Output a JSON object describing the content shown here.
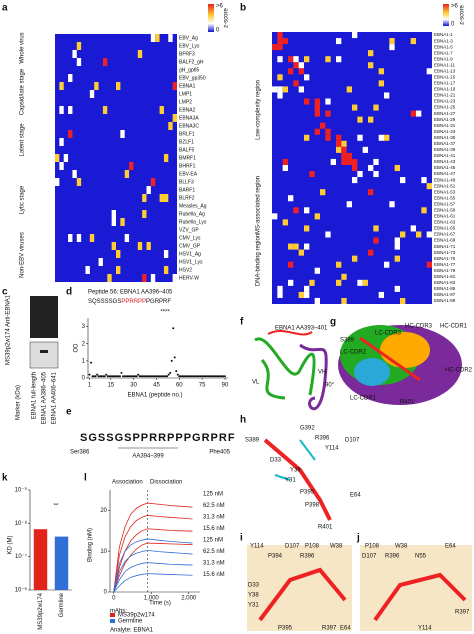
{
  "panels": {
    "a": "a",
    "b": "b",
    "c": "c",
    "d": "d",
    "e": "e",
    "f": "f",
    "g": "g",
    "h": "h",
    "i": "i",
    "j": "j",
    "k": "k",
    "l": "l"
  },
  "colorbar": {
    "max": ">6",
    "min": "0",
    "label": "z-score"
  },
  "heatmap_a": {
    "rows": [
      "EBV_Ag",
      "EBV_Lys",
      "BFRF3",
      "BALF2_gH",
      "gH_gp85",
      "EBV_gp350",
      "EBNA1",
      "LMP1",
      "LMP2",
      "EBNA2",
      "EBNA3A",
      "EBNA3C",
      "BRLF1",
      "BZLF1",
      "BALF5",
      "BMRF1",
      "BHRF1",
      "EBV-EA",
      "BLLF3",
      "BARF1",
      "BLRF2",
      "Measles_Ag",
      "Rubella_Ag",
      "Rubella_Lys",
      "VZV_GP",
      "CMV_Lys",
      "CMV_GP",
      "HSV1_Ag",
      "HSV1_Lys",
      "HSV2",
      "HERV-W"
    ],
    "groups": [
      "Whole virus",
      "Capsid/late stage",
      "Latent stage",
      "Lytic stage",
      "Non-EBV viruses"
    ]
  },
  "heatmap_b": {
    "rows": [
      "EBNA1-1",
      "EBNA1-3",
      "EBNA1-5",
      "EBNA1-7",
      "EBNA1-9",
      "EBNA1-11",
      "EBNA1-13",
      "EBNA1-15",
      "EBNA1-17",
      "EBNA1-19",
      "EBNA1-21",
      "EBNA1-23",
      "EBNA1-25",
      "EBNA1-27",
      "EBNA1-29",
      "EBNA1-31",
      "EBNA1-33",
      "EBNA1-35",
      "EBNA1-37",
      "EBNA1-39",
      "EBNA1-41",
      "EBNA1-43",
      "EBNA1-45",
      "EBNA1-47",
      "EBNA1-49",
      "EBNA1-51",
      "EBNA1-53",
      "EBNA1-55",
      "EBNA1-57",
      "EBNA1-59",
      "EBNA1-61",
      "EBNA1-63",
      "EBNA1-65",
      "EBNA1-67",
      "EBNA1-69",
      "EBNA1-71",
      "EBNA1-73",
      "EBNA1-75",
      "EBNA1-77",
      "EBNA1-79",
      "EBNA1-81",
      "EBNA1-83",
      "EBNA1-85",
      "EBNA1-87",
      "EBNA1-89"
    ],
    "groups": [
      "Low-complexity region",
      "MS-associated region",
      "DNA-binding region"
    ]
  },
  "panel_c": {
    "antibody": "MS39p2w174 Anti-EBNA1",
    "marker": "Marker (kDa)",
    "lanes": [
      "EBNA1 full-length",
      "EBNA1 AA386–405",
      "EBNA1 AA406–641"
    ]
  },
  "panel_d": {
    "title": "Peptide 56: EBNA1 AA396–405",
    "sequence_a": "SQSSSSGS",
    "sequence_b": "PPRRPP",
    "sequence_c": "PGRPRF",
    "annotation": "****",
    "ylabel": "OD",
    "xlabel": "EBNA1 (peptide no.)",
    "xlim": [
      0,
      92
    ],
    "ylim": [
      0,
      3.5
    ],
    "xticks": [
      1,
      15,
      30,
      45,
      60,
      75,
      90
    ],
    "yticks": [
      0,
      1,
      2,
      3
    ],
    "values": [
      0.2,
      0.9,
      0.1,
      0.1,
      0.1,
      0.2,
      0.1,
      0.1,
      0.1,
      0.1,
      0.1,
      0.2,
      0.1,
      0.1,
      0.1,
      0.1,
      0.1,
      0.1,
      0.1,
      0.1,
      0.1,
      0.3,
      0.1,
      0.1,
      0.1,
      0.1,
      0.1,
      0.1,
      0.1,
      0.1,
      0.1,
      0.1,
      0.2,
      0.1,
      0.1,
      0.1,
      0.1,
      0.1,
      0.1,
      0.1,
      0.1,
      0.1,
      0.1,
      0.1,
      0.1,
      0.1,
      0.1,
      0.1,
      0.1,
      0.1,
      0.1,
      0.1,
      0.2,
      0.3,
      1.0,
      2.9,
      1.2,
      0.4,
      0.2,
      0.1,
      0.1,
      0.1,
      0.1,
      0.1,
      0.1,
      0.1,
      0.1,
      0.1,
      0.1,
      0.1,
      0.1,
      0.1,
      0.1,
      0.1,
      0.1,
      0.1,
      0.1,
      0.1,
      0.1,
      0.1,
      0.1,
      0.1,
      0.1,
      0.1,
      0.1,
      0.1,
      0.1,
      0.1,
      0.1,
      0.1
    ]
  },
  "panel_e": {
    "logo": "SGSSGSPPRRPPPGRPRF",
    "start": "Ser386",
    "end": "Phe405",
    "core": "AA394–399"
  },
  "panel_f": {
    "labels": [
      "EBNA1 AA393–401",
      "VL",
      "VH"
    ]
  },
  "panel_g": {
    "labels": [
      "HC-CDR3",
      "LC-CDR3",
      "HC-CDR1",
      "LC-CDR2",
      "HC-CDR2",
      "LC-CDR1",
      "S389",
      "R401",
      "90°"
    ]
  },
  "panel_h": {
    "labels": [
      "S389",
      "G392",
      "R396",
      "Y114",
      "D107",
      "D33",
      "Y38",
      "Y31",
      "P395",
      "E64",
      "P398",
      "R401"
    ]
  },
  "panel_i": {
    "labels": [
      "Y114",
      "D107",
      "P108",
      "W38",
      "P394",
      "R396",
      "D33",
      "Y38",
      "Y31",
      "P395",
      "R397",
      "E64"
    ]
  },
  "panel_j": {
    "labels": [
      "P108",
      "W38",
      "D107",
      "R396",
      "N55",
      "E64",
      "R397",
      "Y114"
    ]
  },
  "chart_k": {
    "type": "bar",
    "ylabel": "KD (M)",
    "categories": [
      "MS39p2w174",
      "Germline"
    ],
    "values": [
      1.5e-08,
      2.5e-08
    ],
    "colors": [
      "#e2231a",
      "#2f6fd6"
    ],
    "log": true,
    "ylim": [
      1e-06,
      1e-09
    ],
    "yticks": [
      {
        "value": 1e-09,
        "label": "10⁻⁹"
      },
      {
        "value": 1e-08,
        "label": "10⁻⁸"
      },
      {
        "value": 1e-07,
        "label": "10⁻⁷"
      },
      {
        "value": 1e-06,
        "label": "10⁻⁶"
      }
    ],
    "annotation": "**"
  },
  "chart_l": {
    "type": "line",
    "phase_a": "Association",
    "phase_b": "Dissociation",
    "xlabel": "Time (s)",
    "ylabel": "Binding (nM)",
    "legend_title": "mAbs:",
    "analyte": "Analyte: EBNA1",
    "legend": [
      {
        "name": "MS39p2w174",
        "color": "#e2231a"
      },
      {
        "name": "Germline",
        "color": "#2f6fd6"
      }
    ],
    "x": [
      0,
      150,
      300,
      450,
      600,
      750,
      900,
      1200,
      1500,
      1800,
      2100
    ],
    "xlim": [
      -100,
      2300
    ],
    "ylim": [
      0,
      25
    ],
    "xticks": [
      0,
      {
        "value": 1000,
        "label": "1,000"
      },
      {
        "value": 2000,
        "label": "2,000"
      }
    ],
    "yticks": [
      0,
      10,
      20
    ],
    "series": [
      {
        "name": "125 nM",
        "color": "#e2231a",
        "values": [
          0,
          11,
          16,
          19,
          20.5,
          21.3,
          21.8,
          21.5,
          21.2,
          21,
          20.8
        ]
      },
      {
        "name": "62.5 nM",
        "color": "#e2231a",
        "values": [
          0,
          9,
          13.5,
          16,
          17.5,
          18.3,
          18.8,
          18.5,
          18.3,
          18.1,
          17.9
        ]
      },
      {
        "name": "31.3 nM",
        "color": "#e2231a",
        "values": [
          0,
          6,
          10,
          12.5,
          14,
          15,
          15.5,
          15.3,
          15.1,
          15,
          14.9
        ]
      },
      {
        "name": "15.6 nM",
        "color": "#e2231a",
        "values": [
          0,
          4,
          7,
          9,
          10.5,
          11.5,
          12,
          11.9,
          11.8,
          11.7,
          11.6
        ]
      },
      {
        "name": "125 nM",
        "color": "#2f6fd6",
        "values": [
          0,
          7,
          10,
          11.5,
          12.3,
          12.7,
          13,
          12.7,
          12.4,
          12.2,
          12
        ]
      },
      {
        "name": "62.5 nM",
        "color": "#2f6fd6",
        "values": [
          0,
          5,
          7.5,
          8.8,
          9.5,
          9.9,
          10.2,
          9.9,
          9.7,
          9.5,
          9.3
        ]
      },
      {
        "name": "31.3 nM",
        "color": "#2f6fd6",
        "values": [
          0,
          3,
          5,
          6,
          6.6,
          7,
          7.2,
          7,
          6.8,
          6.7,
          6.6
        ]
      },
      {
        "name": "15.6 nM",
        "color": "#2f6fd6",
        "values": [
          0,
          1.5,
          2.8,
          3.6,
          4,
          4.3,
          4.5,
          4.4,
          4.3,
          4.2,
          4.1
        ]
      }
    ]
  }
}
